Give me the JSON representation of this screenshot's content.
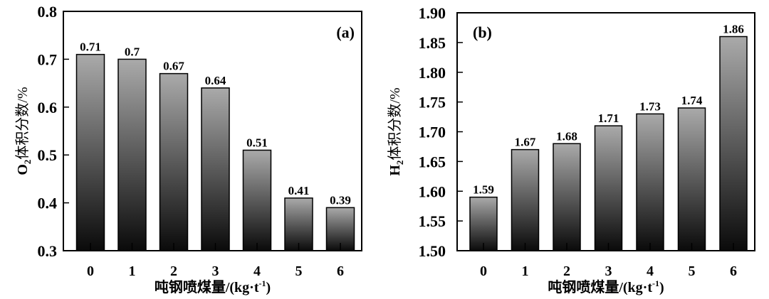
{
  "chart_data": [
    {
      "type": "bar",
      "panel_label": "(a)",
      "categories": [
        "0",
        "1",
        "2",
        "3",
        "4",
        "5",
        "6"
      ],
      "values": [
        0.71,
        0.7,
        0.67,
        0.64,
        0.51,
        0.41,
        0.39
      ],
      "value_labels": [
        "0.71",
        "0.7",
        "0.67",
        "0.64",
        "0.51",
        "0.41",
        "0.39"
      ],
      "ylabel_main": "O",
      "ylabel_sub": "2",
      "ylabel_rest": "体积分数/%",
      "xlabel_main": "吨钢喷煤量/(kg·t",
      "xlabel_sup": "-1",
      "xlabel_end": ")",
      "ylim": [
        0.3,
        0.8
      ],
      "yticks": [
        "0.3",
        "0.4",
        "0.5",
        "0.6",
        "0.7",
        "0.8"
      ],
      "ytick_values": [
        0.3,
        0.4,
        0.5,
        0.6,
        0.7,
        0.8
      ],
      "grid": false
    },
    {
      "type": "bar",
      "panel_label": "(b)",
      "categories": [
        "0",
        "1",
        "2",
        "3",
        "4",
        "5",
        "6"
      ],
      "values": [
        1.59,
        1.67,
        1.68,
        1.71,
        1.73,
        1.74,
        1.86
      ],
      "value_labels": [
        "1.59",
        "1.67",
        "1.68",
        "1.71",
        "1.73",
        "1.74",
        "1.86"
      ],
      "ylabel_main": "H",
      "ylabel_sub": "2",
      "ylabel_rest": "体积分数/%",
      "xlabel_main": "吨钢喷煤量/(kg·t",
      "xlabel_sup": "-1",
      "xlabel_end": ")",
      "ylim": [
        1.5,
        1.9
      ],
      "yticks": [
        "1.50",
        "1.55",
        "1.60",
        "1.65",
        "1.70",
        "1.75",
        "1.80",
        "1.85",
        "1.90"
      ],
      "ytick_values": [
        1.5,
        1.55,
        1.6,
        1.65,
        1.7,
        1.75,
        1.8,
        1.85,
        1.9
      ],
      "grid": false
    }
  ],
  "colors": {
    "bar_top": "#aaaaaa",
    "bar_bottom": "#0a0a0a",
    "axis": "#000000"
  }
}
